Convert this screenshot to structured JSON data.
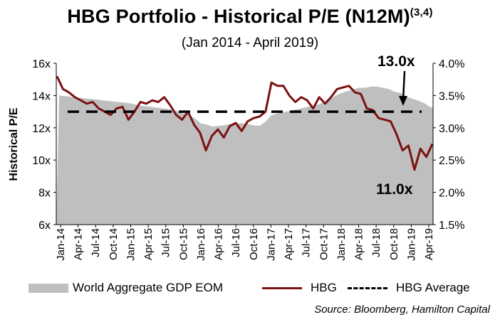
{
  "title_main": "HBG Portfolio - Historical P/E (N12M)",
  "title_sup": "(3,4)",
  "subtitle": "(Jan 2014 - April 2019)",
  "source": "Source: Bloomberg, Hamilton Capital",
  "colors": {
    "area": "#bfbfbf",
    "hbg": "#7b1111",
    "average": "#000000"
  },
  "chart_data": {
    "type": "line",
    "ylabel": "Historical P/E",
    "ylim_left": [
      6,
      16
    ],
    "ylim_right": [
      1.5,
      4.0
    ],
    "left_ticks": [
      "6x",
      "8x",
      "10x",
      "12x",
      "14x",
      "16x"
    ],
    "right_ticks": [
      "1.5%",
      "2.0%",
      "2.5%",
      "3.0%",
      "3.5%",
      "4.0%"
    ],
    "x_ticks": [
      "Jan-14",
      "Apr-14",
      "Jul-14",
      "Oct-14",
      "Jan-15",
      "Apr-15",
      "Jul-15",
      "Oct-15",
      "Jan-16",
      "Apr-16",
      "Jul-16",
      "Oct-16",
      "Jan-17",
      "Apr-17",
      "Jul-17",
      "Oct-17",
      "Jan-18",
      "Apr-18",
      "Jul-18",
      "Oct-18",
      "Jan-19",
      "Apr-19"
    ],
    "grid": false,
    "legend_position": "bottom",
    "series": [
      {
        "name": "World Aggregate GDP EOM",
        "type": "area",
        "axis": "right",
        "x": [
          "Jan-14",
          "Feb-14",
          "Mar-14",
          "Apr-14",
          "May-14",
          "Jun-14",
          "Jul-14",
          "Aug-14",
          "Sep-14",
          "Oct-14",
          "Nov-14",
          "Dec-14",
          "Jan-15",
          "Feb-15",
          "Mar-15",
          "Apr-15",
          "May-15",
          "Jun-15",
          "Jul-15",
          "Aug-15",
          "Sep-15",
          "Oct-15",
          "Nov-15",
          "Dec-15",
          "Jan-16",
          "Feb-16",
          "Mar-16",
          "Apr-16",
          "May-16",
          "Jun-16",
          "Jul-16",
          "Aug-16",
          "Sep-16",
          "Oct-16",
          "Nov-16",
          "Dec-16",
          "Jan-17",
          "Feb-17",
          "Mar-17",
          "Apr-17",
          "May-17",
          "Jun-17",
          "Jul-17",
          "Aug-17",
          "Sep-17",
          "Oct-17",
          "Nov-17",
          "Dec-17",
          "Jan-18",
          "Feb-18",
          "Mar-18",
          "Apr-18",
          "May-18",
          "Jun-18",
          "Jul-18",
          "Aug-18",
          "Sep-18",
          "Oct-18",
          "Nov-18",
          "Dec-18",
          "Jan-19",
          "Feb-19",
          "Mar-19",
          "Apr-19"
        ],
        "values": [
          3.5,
          3.49,
          3.48,
          3.47,
          3.46,
          3.45,
          3.44,
          3.43,
          3.42,
          3.41,
          3.4,
          3.39,
          3.38,
          3.36,
          3.34,
          3.33,
          3.32,
          3.31,
          3.3,
          3.28,
          3.26,
          3.22,
          3.2,
          3.15,
          3.07,
          3.05,
          3.02,
          3.03,
          3.04,
          3.06,
          3.07,
          3.07,
          3.06,
          3.04,
          3.03,
          3.09,
          3.19,
          3.22,
          3.24,
          3.26,
          3.28,
          3.3,
          3.32,
          3.34,
          3.36,
          3.4,
          3.44,
          3.5,
          3.54,
          3.57,
          3.6,
          3.62,
          3.62,
          3.64,
          3.64,
          3.62,
          3.6,
          3.56,
          3.54,
          3.48,
          3.45,
          3.42,
          3.38,
          3.32
        ]
      },
      {
        "name": "HBG",
        "type": "line",
        "axis": "left",
        "x": [
          "Jan-14",
          "Feb-14",
          "Mar-14",
          "Apr-14",
          "May-14",
          "Jun-14",
          "Jul-14",
          "Aug-14",
          "Sep-14",
          "Oct-14",
          "Nov-14",
          "Dec-14",
          "Jan-15",
          "Feb-15",
          "Mar-15",
          "Apr-15",
          "May-15",
          "Jun-15",
          "Jul-15",
          "Aug-15",
          "Sep-15",
          "Oct-15",
          "Nov-15",
          "Dec-15",
          "Jan-16",
          "Feb-16",
          "Mar-16",
          "Apr-16",
          "May-16",
          "Jun-16",
          "Jul-16",
          "Aug-16",
          "Sep-16",
          "Oct-16",
          "Nov-16",
          "Dec-16",
          "Jan-17",
          "Feb-17",
          "Mar-17",
          "Apr-17",
          "May-17",
          "Jun-17",
          "Jul-17",
          "Aug-17",
          "Sep-17",
          "Oct-17",
          "Nov-17",
          "Dec-17",
          "Jan-18",
          "Feb-18",
          "Mar-18",
          "Apr-18",
          "May-18",
          "Jun-18",
          "Jul-18",
          "Aug-18",
          "Sep-18",
          "Oct-18",
          "Nov-18",
          "Dec-18",
          "Jan-19",
          "Feb-19",
          "Mar-19",
          "Apr-19"
        ],
        "values": [
          15.2,
          14.4,
          14.2,
          13.9,
          13.7,
          13.5,
          13.6,
          13.2,
          13.0,
          12.8,
          13.2,
          13.3,
          12.5,
          13.0,
          13.6,
          13.5,
          13.7,
          13.6,
          13.9,
          13.4,
          12.8,
          12.5,
          13.0,
          12.2,
          11.7,
          10.6,
          11.5,
          11.9,
          11.4,
          12.1,
          12.3,
          11.8,
          12.4,
          12.6,
          12.7,
          13.0,
          14.8,
          14.6,
          14.6,
          14.0,
          13.6,
          13.9,
          13.7,
          13.2,
          13.9,
          13.5,
          13.9,
          14.4,
          14.5,
          14.6,
          14.2,
          14.1,
          13.2,
          13.1,
          12.6,
          12.5,
          12.4,
          11.6,
          10.6,
          10.9,
          9.4,
          10.7,
          10.2,
          11.0
        ]
      },
      {
        "name": "HBG Average",
        "type": "line",
        "style": "dashed",
        "axis": "left",
        "value": 13.0
      }
    ],
    "annotations": [
      "13.0x",
      "11.0x"
    ]
  }
}
